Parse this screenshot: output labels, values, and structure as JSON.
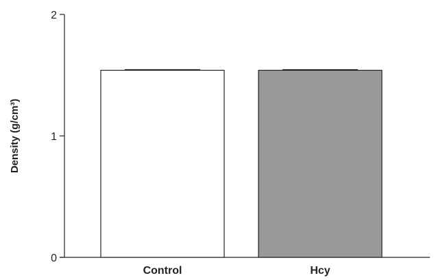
{
  "chart_data": {
    "type": "bar",
    "categories": [
      "Control",
      "Hcy"
    ],
    "values": [
      1.54,
      1.54
    ],
    "errors": [
      0.005,
      0.005
    ],
    "ylabel": "Density (g/cm³)",
    "ylim": [
      0,
      2
    ],
    "yticks": [
      0,
      1,
      2
    ],
    "grid": false,
    "colors": {
      "bars": [
        "#ffffff",
        "#999999"
      ],
      "edge": "#222222",
      "axis": "#222222"
    }
  }
}
